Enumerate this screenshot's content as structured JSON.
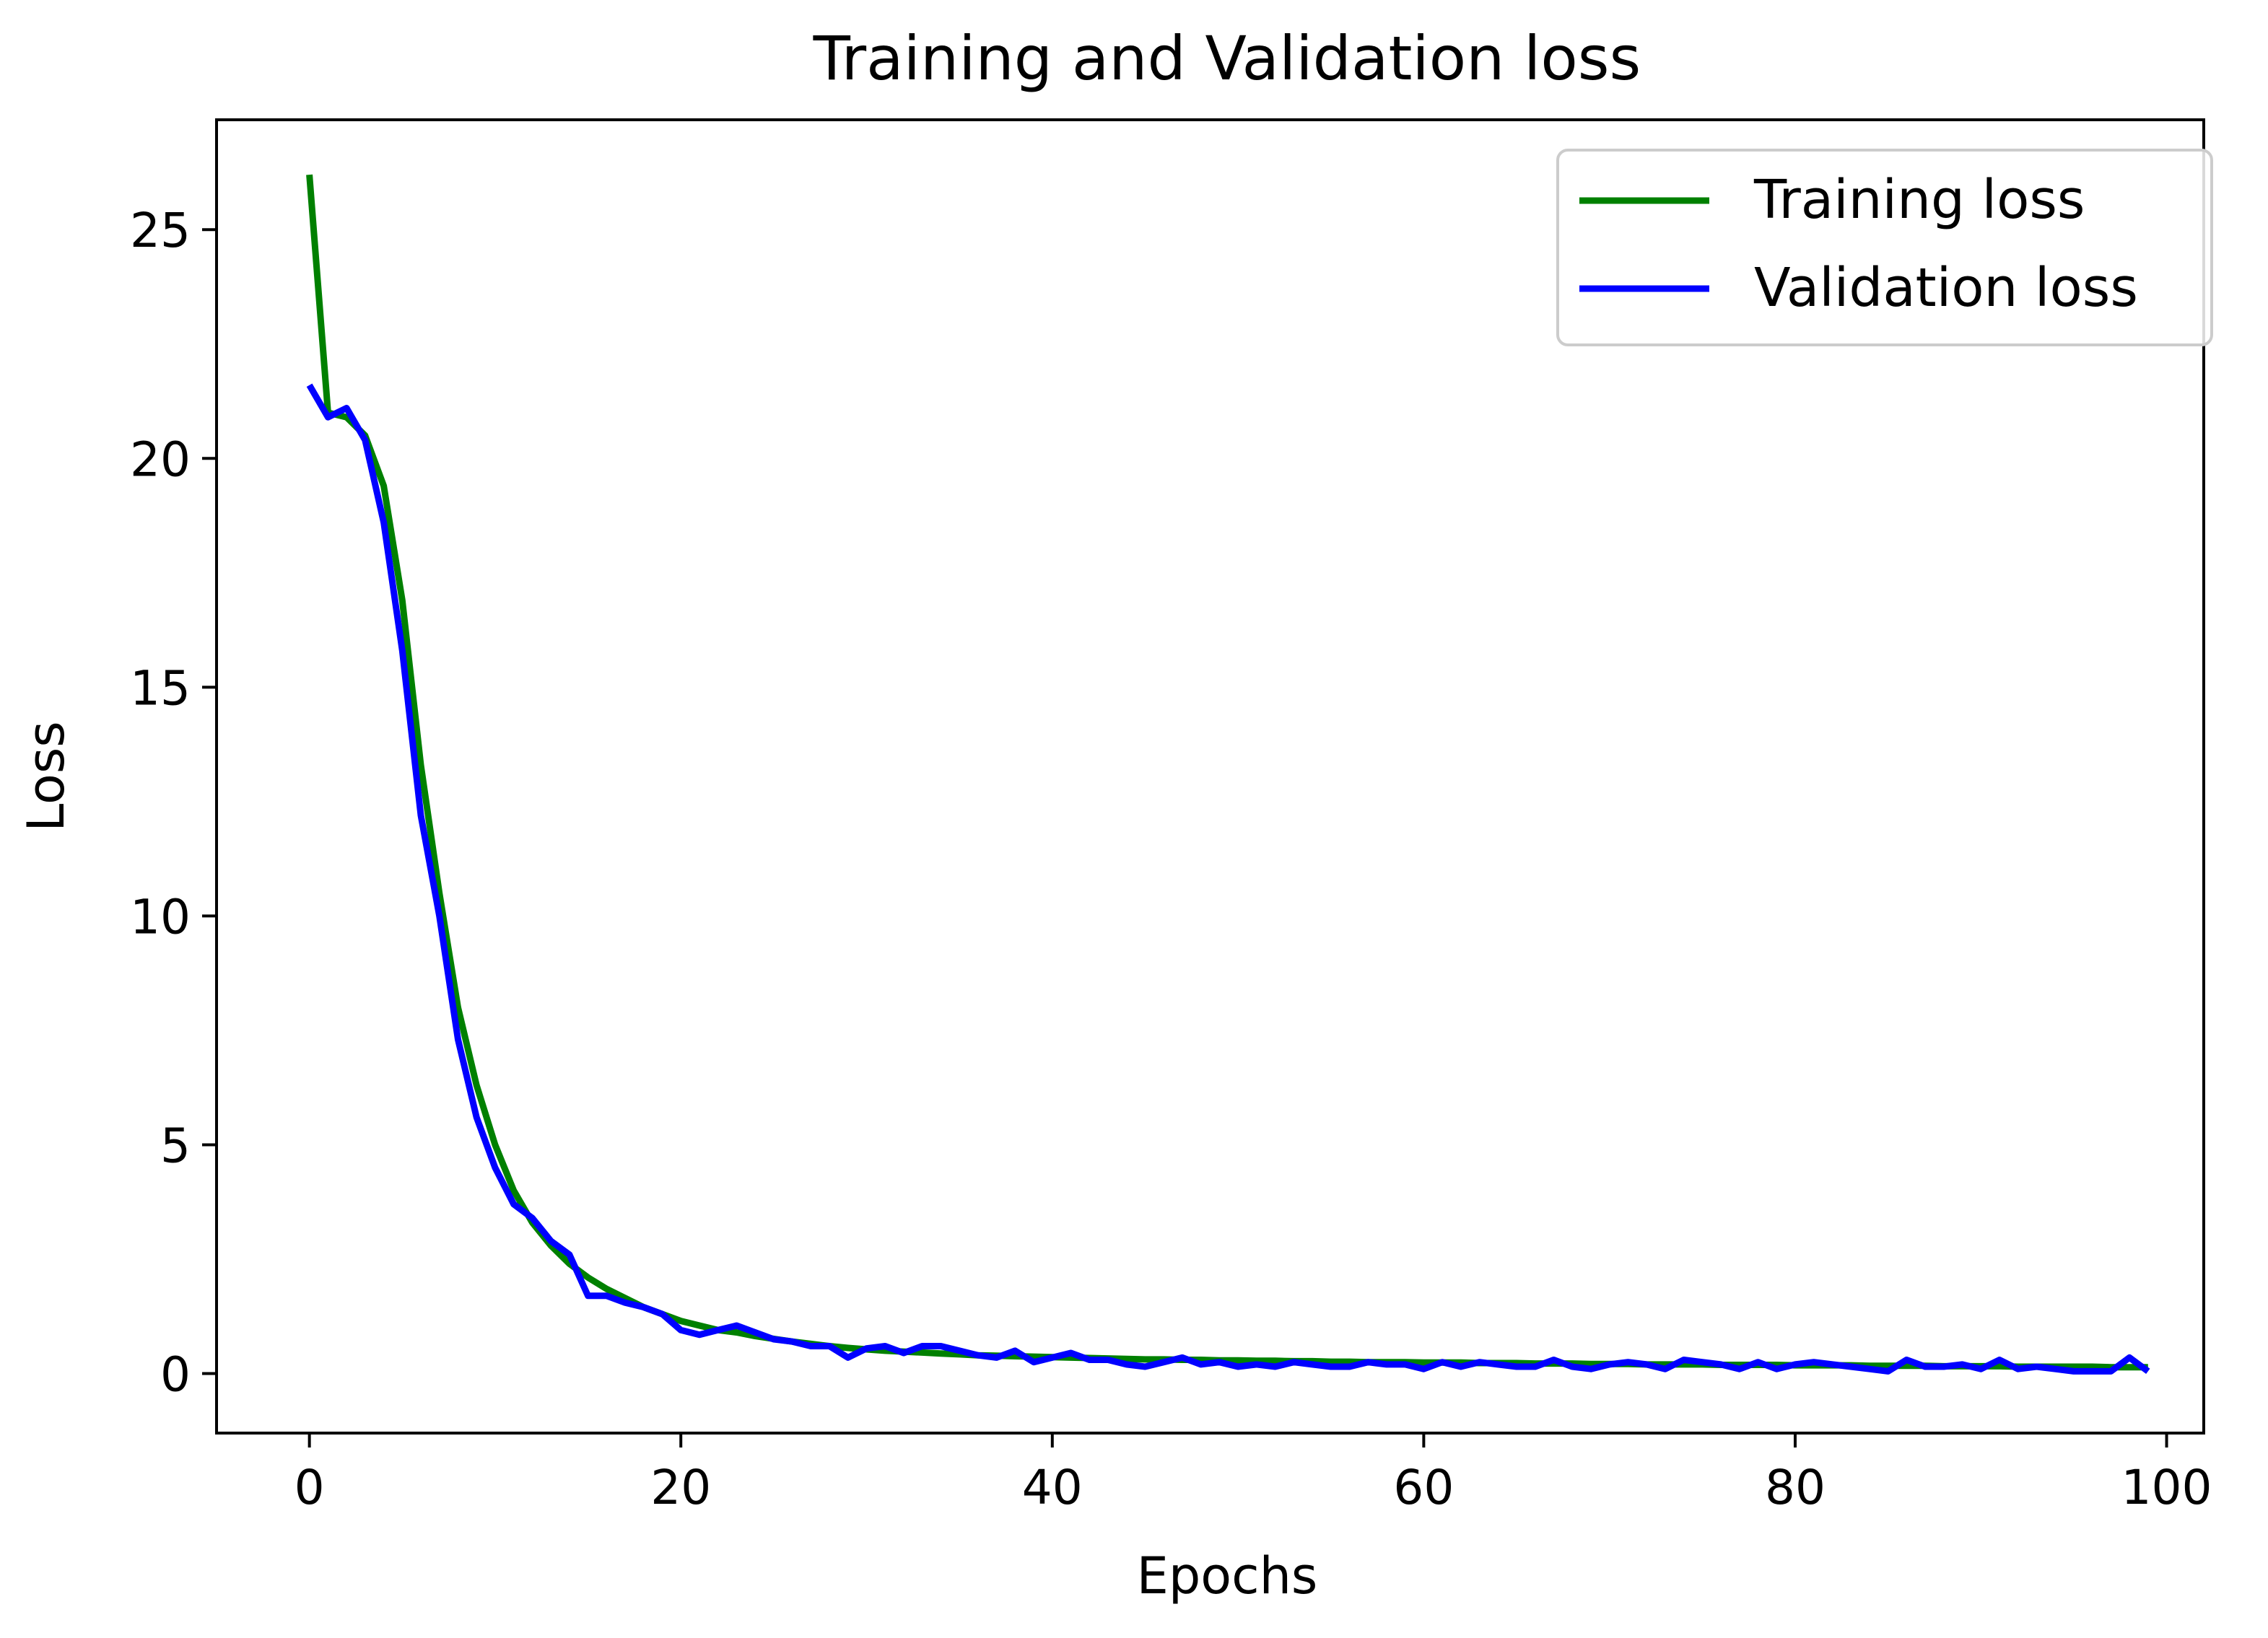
{
  "chart_data": {
    "type": "line",
    "title": "Training and Validation loss",
    "xlabel": "Epochs",
    "ylabel": "Loss",
    "xlim": [
      -5,
      102
    ],
    "ylim": [
      -1.3,
      27.4
    ],
    "xticks": [
      0,
      20,
      40,
      60,
      80,
      100
    ],
    "yticks": [
      0,
      5,
      10,
      15,
      20,
      25
    ],
    "xtick_labels": [
      "0",
      "20",
      "40",
      "60",
      "80",
      "100"
    ],
    "ytick_labels": [
      "0",
      "5",
      "10",
      "15",
      "20",
      "25"
    ],
    "grid": false,
    "legend_position": "top-right",
    "series": [
      {
        "name": "Training loss",
        "color": "#008000",
        "x": [
          0,
          1,
          2,
          3,
          4,
          5,
          6,
          7,
          8,
          9,
          10,
          11,
          12,
          13,
          14,
          15,
          16,
          17,
          18,
          19,
          20,
          21,
          22,
          23,
          24,
          25,
          26,
          27,
          28,
          29,
          30,
          31,
          32,
          33,
          34,
          35,
          36,
          37,
          38,
          39,
          40,
          41,
          42,
          43,
          44,
          45,
          46,
          47,
          48,
          49,
          50,
          51,
          52,
          53,
          54,
          55,
          56,
          57,
          58,
          59,
          60,
          61,
          62,
          63,
          64,
          65,
          66,
          67,
          68,
          69,
          70,
          71,
          72,
          73,
          74,
          75,
          76,
          77,
          78,
          79,
          80,
          81,
          82,
          83,
          84,
          85,
          86,
          87,
          88,
          89,
          90,
          91,
          92,
          93,
          94,
          95,
          96,
          97,
          98,
          99
        ],
        "values": [
          26.2,
          21.0,
          20.9,
          20.5,
          19.4,
          16.9,
          13.3,
          10.5,
          8.0,
          6.3,
          5.0,
          4.0,
          3.3,
          2.8,
          2.4,
          2.1,
          1.85,
          1.65,
          1.45,
          1.3,
          1.15,
          1.05,
          0.95,
          0.9,
          0.82,
          0.76,
          0.7,
          0.65,
          0.6,
          0.56,
          0.53,
          0.5,
          0.48,
          0.46,
          0.44,
          0.42,
          0.4,
          0.39,
          0.38,
          0.37,
          0.36,
          0.35,
          0.34,
          0.33,
          0.32,
          0.31,
          0.31,
          0.3,
          0.3,
          0.29,
          0.29,
          0.28,
          0.28,
          0.27,
          0.27,
          0.26,
          0.26,
          0.25,
          0.25,
          0.25,
          0.24,
          0.24,
          0.24,
          0.23,
          0.23,
          0.23,
          0.22,
          0.22,
          0.22,
          0.21,
          0.21,
          0.21,
          0.2,
          0.2,
          0.2,
          0.2,
          0.19,
          0.19,
          0.19,
          0.19,
          0.18,
          0.18,
          0.18,
          0.18,
          0.17,
          0.17,
          0.17,
          0.17,
          0.16,
          0.16,
          0.16,
          0.16,
          0.15,
          0.15,
          0.15,
          0.15,
          0.15,
          0.14,
          0.14,
          0.14
        ]
      },
      {
        "name": "Validation loss",
        "color": "#0000ff",
        "x": [
          0,
          1,
          2,
          3,
          4,
          5,
          6,
          7,
          8,
          9,
          10,
          11,
          12,
          13,
          14,
          15,
          16,
          17,
          18,
          19,
          20,
          21,
          22,
          23,
          24,
          25,
          26,
          27,
          28,
          29,
          30,
          31,
          32,
          33,
          34,
          35,
          36,
          37,
          38,
          39,
          40,
          41,
          42,
          43,
          44,
          45,
          46,
          47,
          48,
          49,
          50,
          51,
          52,
          53,
          54,
          55,
          56,
          57,
          58,
          59,
          60,
          61,
          62,
          63,
          64,
          65,
          66,
          67,
          68,
          69,
          70,
          71,
          72,
          73,
          74,
          75,
          76,
          77,
          78,
          79,
          80,
          81,
          82,
          83,
          84,
          85,
          86,
          87,
          88,
          89,
          90,
          91,
          92,
          93,
          94,
          95,
          96,
          97,
          98,
          99
        ],
        "values": [
          21.6,
          20.9,
          21.1,
          20.4,
          18.6,
          15.8,
          12.2,
          10.0,
          7.3,
          5.6,
          4.5,
          3.7,
          3.4,
          2.9,
          2.6,
          1.7,
          1.7,
          1.55,
          1.45,
          1.3,
          0.95,
          0.85,
          0.95,
          1.05,
          0.9,
          0.75,
          0.7,
          0.6,
          0.6,
          0.35,
          0.55,
          0.6,
          0.45,
          0.6,
          0.6,
          0.5,
          0.4,
          0.35,
          0.5,
          0.25,
          0.35,
          0.45,
          0.3,
          0.3,
          0.2,
          0.15,
          0.25,
          0.35,
          0.2,
          0.25,
          0.15,
          0.2,
          0.15,
          0.25,
          0.2,
          0.15,
          0.15,
          0.25,
          0.2,
          0.2,
          0.1,
          0.25,
          0.15,
          0.25,
          0.2,
          0.15,
          0.15,
          0.3,
          0.15,
          0.1,
          0.2,
          0.25,
          0.2,
          0.1,
          0.3,
          0.25,
          0.2,
          0.1,
          0.25,
          0.1,
          0.2,
          0.25,
          0.2,
          0.15,
          0.1,
          0.05,
          0.3,
          0.15,
          0.15,
          0.2,
          0.1,
          0.3,
          0.1,
          0.15,
          0.1,
          0.05,
          0.05,
          0.05,
          0.35,
          0.05
        ]
      }
    ]
  }
}
